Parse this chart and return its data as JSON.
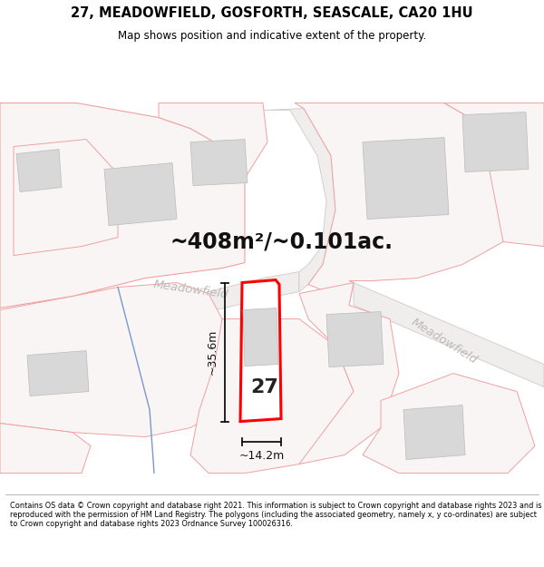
{
  "title": "27, MEADOWFIELD, GOSFORTH, SEASCALE, CA20 1HU",
  "subtitle": "Map shows position and indicative extent of the property.",
  "footer": "Contains OS data © Crown copyright and database right 2021. This information is subject to Crown copyright and database rights 2023 and is reproduced with the permission of HM Land Registry. The polygons (including the associated geometry, namely x, y co-ordinates) are subject to Crown copyright and database rights 2023 Ordnance Survey 100026316.",
  "area_label": "~408m²/~0.101ac.",
  "label_27": "27",
  "dim_width": "~14.2m",
  "dim_height": "~35.6m",
  "street_label1": "Meadowfield",
  "street_label2": "Meadowfield",
  "bg_color": "#ffffff",
  "map_bg": "#faf5f5",
  "plot_ec": "#ff0000",
  "plot_fc": "#ffffff",
  "bld_fc": "#d8d8d8",
  "bld_ec": "#bbbbbb",
  "road_fc": "#fce8e8",
  "road_ec": "#f0b0b0",
  "parcel_ec": "#f0a0a0",
  "parcel_fc": "#faf5f5",
  "blue_color": "#7799cc",
  "gray_road_color": "#c8c8c8",
  "street_text_color": "#c0b8b8",
  "dim_color": "#111111",
  "area_color": "#111111"
}
